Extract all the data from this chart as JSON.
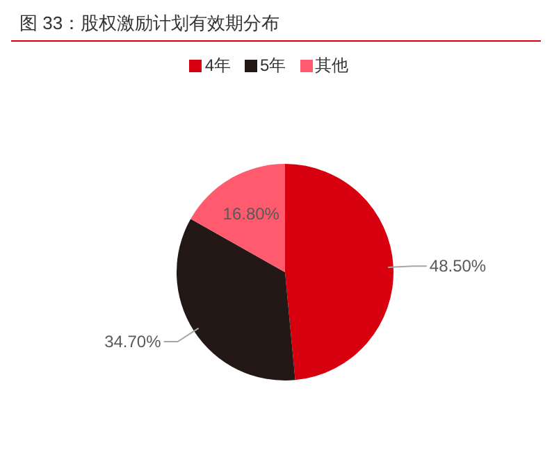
{
  "chart_data": {
    "type": "pie",
    "title": "图 33：股权激励计划有效期分布",
    "categories": [
      "4年",
      "5年",
      "其他"
    ],
    "values": [
      48.5,
      34.7,
      16.8
    ],
    "value_labels": [
      "48.50%",
      "34.70%",
      "16.80%"
    ],
    "colors": [
      "#d7000f",
      "#231815",
      "#ff5a6e"
    ],
    "legend": "top"
  }
}
